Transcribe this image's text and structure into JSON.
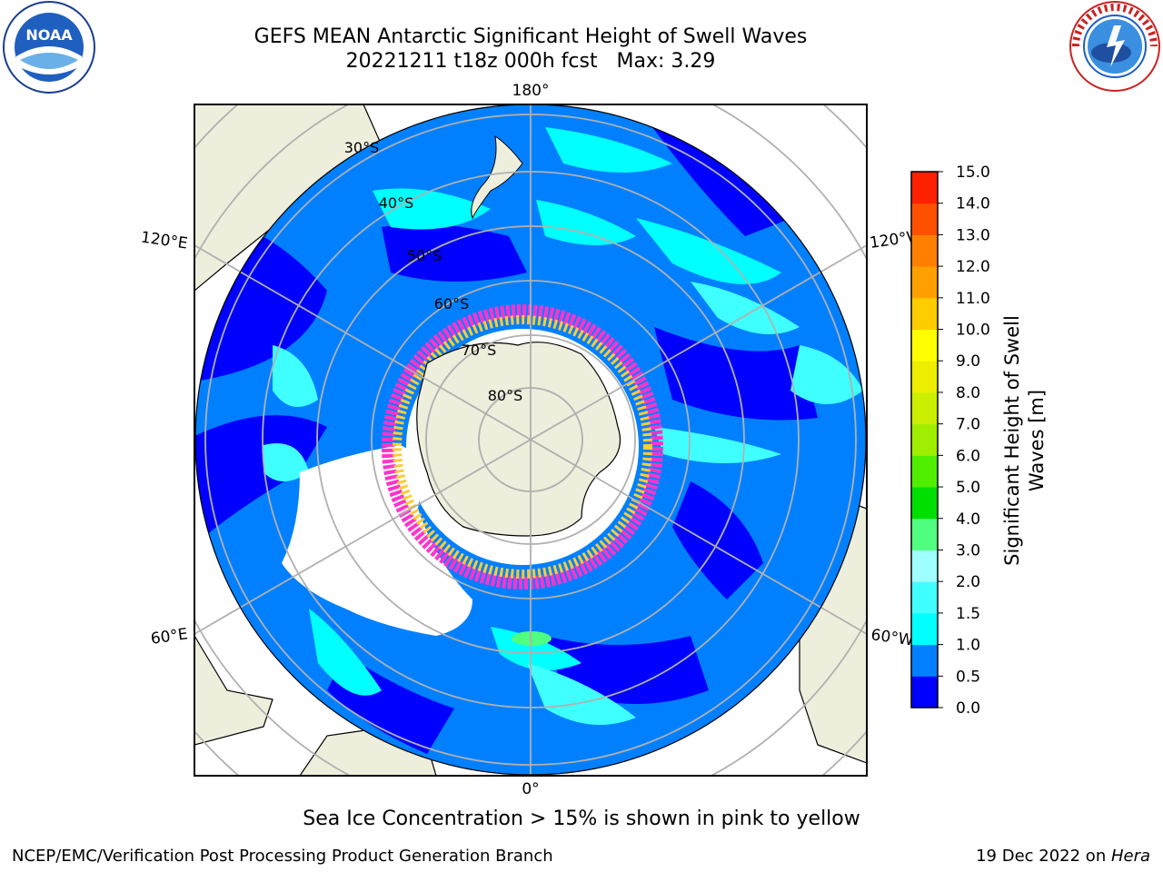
{
  "title": {
    "line1": "GEFS MEAN Antarctic Significant Height of Swell Waves",
    "line2": "20221211 t18z 000h fcst   Max: 3.29"
  },
  "logos": {
    "left": {
      "text": "NOAA",
      "icon": "noaa-logo-icon"
    },
    "right": {
      "text": "NATIONAL WEATHER SERVICE",
      "icon": "nws-logo-icon"
    }
  },
  "map": {
    "projection": "south-polar-stereographic",
    "longitude_labels": {
      "top": "180°",
      "bottom": "0°",
      "left_upper": "120°E",
      "left_lower": "60°E",
      "right_upper": "120°W",
      "right_lower": "60°W"
    },
    "latitude_labels": [
      "30°S",
      "40°S",
      "50°S",
      "60°S",
      "70°S",
      "80°S"
    ],
    "colors": {
      "ocean_0_0.5": "#0000ff",
      "ocean_0.5_1.0": "#0080ff",
      "ocean_1.0_1.5": "#00ffff",
      "ocean_1.5_2.0": "#40ffff",
      "ocean_2.0_3.0": "#a0ffff",
      "land": "#eeeedc",
      "sea_ice_low": "#ff33cc",
      "sea_ice_high": "#ffcc33",
      "grid": "#b0b0b0"
    }
  },
  "colorbar": {
    "label": "Significant Height of Swell\nWaves [m]",
    "ticks": [
      "0.0",
      "0.5",
      "1.0",
      "1.5",
      "2.0",
      "3.0",
      "4.0",
      "5.0",
      "6.0",
      "7.0",
      "8.0",
      "9.0",
      "10.0",
      "11.0",
      "12.0",
      "13.0",
      "14.0",
      "15.0"
    ],
    "colors": [
      "#0000ff",
      "#0080ff",
      "#00ffff",
      "#40ffff",
      "#a0ffff",
      "#50ff80",
      "#00e000",
      "#50ee00",
      "#a0ee00",
      "#ccee00",
      "#eeee00",
      "#ffff00",
      "#ffcc00",
      "#ffa000",
      "#ff8000",
      "#ff5000",
      "#ff2000"
    ]
  },
  "note": "Sea Ice Concentration > 15% is shown in pink to yellow",
  "footer": {
    "left": "NCEP/EMC/Verification Post Processing Product Generation Branch",
    "right_date": "19 Dec 2022 on ",
    "right_machine": "Hera"
  }
}
